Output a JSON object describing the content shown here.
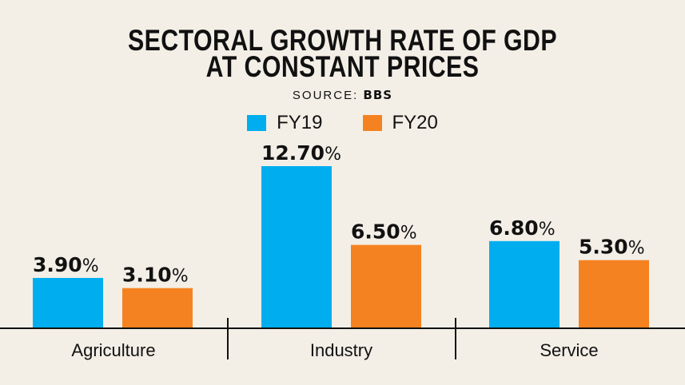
{
  "chart_data": {
    "type": "bar",
    "title": [
      "SECTORAL GROWTH RATE OF GDP",
      "AT CONSTANT PRICES"
    ],
    "source_label": "SOURCE:",
    "source_value": "BBS",
    "categories": [
      "Agriculture",
      "Industry",
      "Service"
    ],
    "series": [
      {
        "name": "FY19",
        "color": "#00aeef",
        "values": [
          3.9,
          12.7,
          6.8
        ],
        "labels": [
          "3.90",
          "12.70",
          "6.80"
        ]
      },
      {
        "name": "FY20",
        "color": "#f58220",
        "values": [
          3.1,
          6.5,
          5.3
        ],
        "labels": [
          "3.10",
          "6.50",
          "5.30"
        ]
      }
    ],
    "unit_suffix": "%",
    "ylim": [
      0,
      12.7
    ],
    "legend": "top-center",
    "grid": false,
    "xlabel": "",
    "ylabel": ""
  }
}
